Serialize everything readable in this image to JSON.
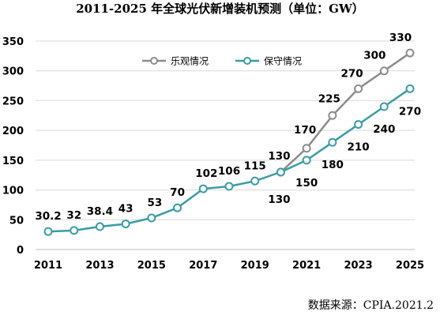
{
  "chart_data": {
    "type": "line",
    "title": "2011-2025 年全球光伏新增装机预测（单位：GW）",
    "source": "数据来源：CPIA.2021.2",
    "xlabel": "",
    "ylabel": "",
    "x": [
      2011,
      2012,
      2013,
      2014,
      2015,
      2016,
      2017,
      2018,
      2019,
      2020,
      2021,
      2022,
      2023,
      2024,
      2025
    ],
    "x_tick_labels": [
      "2011",
      "2013",
      "2015",
      "2017",
      "2019",
      "2021",
      "2023",
      "2025"
    ],
    "y_tick_labels": [
      "0",
      "50",
      "100",
      "150",
      "200",
      "250",
      "300",
      "350"
    ],
    "ylim": [
      0,
      350
    ],
    "grid": true,
    "legend_position": "top",
    "series": [
      {
        "name": "乐观情况",
        "color": "#8c8c8c",
        "x": [
          2020,
          2021,
          2022,
          2023,
          2024,
          2025
        ],
        "values": [
          130,
          170,
          225,
          270,
          300,
          330
        ],
        "labels": [
          "",
          "170",
          "225",
          "270",
          "300",
          "330"
        ]
      },
      {
        "name": "保守情况",
        "color": "#3b9ca6",
        "x": [
          2011,
          2012,
          2013,
          2014,
          2015,
          2016,
          2017,
          2018,
          2019,
          2020,
          2021,
          2022,
          2023,
          2024,
          2025
        ],
        "values": [
          30.2,
          32,
          38.4,
          43,
          53,
          70,
          102,
          106,
          115,
          130,
          150,
          180,
          210,
          240,
          270
        ],
        "labels": [
          "30.2",
          "32",
          "38.4",
          "43",
          "53",
          "70",
          "102",
          "106",
          "115",
          "130",
          "150",
          "180",
          "210",
          "240",
          "270"
        ]
      }
    ],
    "annotations": [
      {
        "text": "130",
        "x": 2020,
        "y": 130
      }
    ]
  }
}
